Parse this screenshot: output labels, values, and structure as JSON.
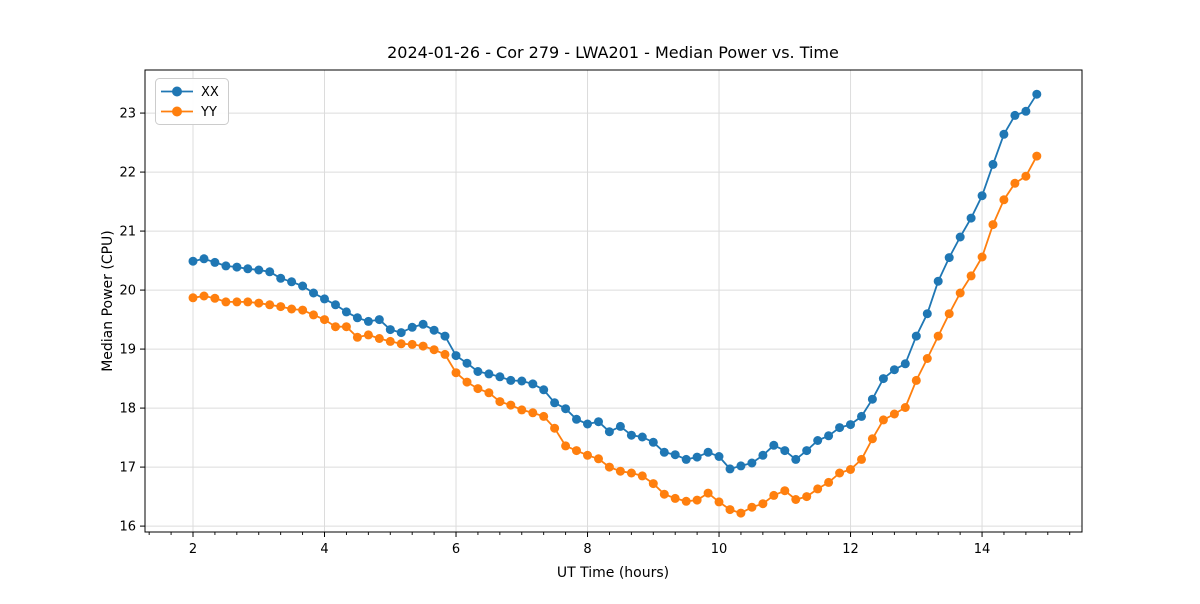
{
  "chart_data": {
    "type": "line",
    "title": "2024-01-26 - Cor 279 - LWA201 - Median Power vs. Time",
    "xlabel": "UT Time (hours)",
    "ylabel": "Median Power (CPU)",
    "grid": true,
    "legend_position": "upper left",
    "xlim": [
      1.27,
      15.52
    ],
    "ylim": [
      15.9,
      23.73
    ],
    "x_major_ticks": [
      2,
      4,
      6,
      8,
      10,
      12,
      14
    ],
    "x_minor_tick_interval": 0.33333,
    "y_major_ticks": [
      16,
      17,
      18,
      19,
      20,
      21,
      22,
      23
    ],
    "colors": {
      "grid": "#dcdcdc",
      "spine": "#000000",
      "legend_border": "#cccccc",
      "text": "#000000"
    },
    "x": [
      2.0,
      2.167,
      2.333,
      2.5,
      2.667,
      2.833,
      3.0,
      3.167,
      3.333,
      3.5,
      3.667,
      3.833,
      4.0,
      4.167,
      4.333,
      4.5,
      4.667,
      4.833,
      5.0,
      5.167,
      5.333,
      5.5,
      5.667,
      5.833,
      6.0,
      6.167,
      6.333,
      6.5,
      6.667,
      6.833,
      7.0,
      7.167,
      7.333,
      7.5,
      7.667,
      7.833,
      8.0,
      8.167,
      8.333,
      8.5,
      8.667,
      8.833,
      9.0,
      9.167,
      9.333,
      9.5,
      9.667,
      9.833,
      10.0,
      10.167,
      10.333,
      10.5,
      10.667,
      10.833,
      11.0,
      11.167,
      11.333,
      11.5,
      11.667,
      11.833,
      12.0,
      12.167,
      12.333,
      12.5,
      12.667,
      12.833,
      13.0,
      13.167,
      13.333,
      13.5,
      13.667,
      13.833,
      14.0,
      14.167,
      14.333,
      14.5,
      14.667,
      14.833
    ],
    "series": [
      {
        "name": "XX",
        "color": "#1f77b4",
        "values": [
          20.49,
          20.53,
          20.47,
          20.41,
          20.39,
          20.36,
          20.34,
          20.31,
          20.2,
          20.14,
          20.07,
          19.95,
          19.85,
          19.75,
          19.63,
          19.53,
          19.47,
          19.5,
          19.33,
          19.28,
          19.37,
          19.42,
          19.32,
          19.22,
          18.89,
          18.76,
          18.62,
          18.58,
          18.53,
          18.47,
          18.46,
          18.41,
          18.31,
          18.09,
          17.99,
          17.81,
          17.73,
          17.77,
          17.6,
          17.69,
          17.54,
          17.51,
          17.42,
          17.25,
          17.21,
          17.13,
          17.17,
          17.25,
          17.18,
          16.97,
          17.02,
          17.07,
          17.2,
          17.37,
          17.28,
          17.13,
          17.28,
          17.45,
          17.53,
          17.67,
          17.72,
          17.86,
          18.15,
          18.5,
          18.65,
          18.75,
          19.22,
          19.6,
          20.15,
          20.55,
          20.9,
          21.22,
          21.6,
          22.13,
          22.64,
          22.96,
          23.03,
          23.32
        ]
      },
      {
        "name": "YY",
        "color": "#ff7f0e",
        "values": [
          19.87,
          19.9,
          19.86,
          19.8,
          19.8,
          19.8,
          19.78,
          19.75,
          19.72,
          19.68,
          19.66,
          19.58,
          19.5,
          19.38,
          19.38,
          19.2,
          19.24,
          19.18,
          19.13,
          19.09,
          19.08,
          19.05,
          18.99,
          18.91,
          18.6,
          18.44,
          18.33,
          18.26,
          18.11,
          18.05,
          17.97,
          17.92,
          17.86,
          17.66,
          17.36,
          17.28,
          17.2,
          17.14,
          17.0,
          16.93,
          16.9,
          16.85,
          16.72,
          16.54,
          16.47,
          16.42,
          16.44,
          16.56,
          16.41,
          16.28,
          16.22,
          16.32,
          16.38,
          16.52,
          16.6,
          16.45,
          16.5,
          16.63,
          16.74,
          16.9,
          16.96,
          17.13,
          17.48,
          17.8,
          17.9,
          18.01,
          18.47,
          18.84,
          19.22,
          19.6,
          19.95,
          20.24,
          20.56,
          21.11,
          21.53,
          21.81,
          21.93,
          22.27
        ]
      }
    ]
  }
}
